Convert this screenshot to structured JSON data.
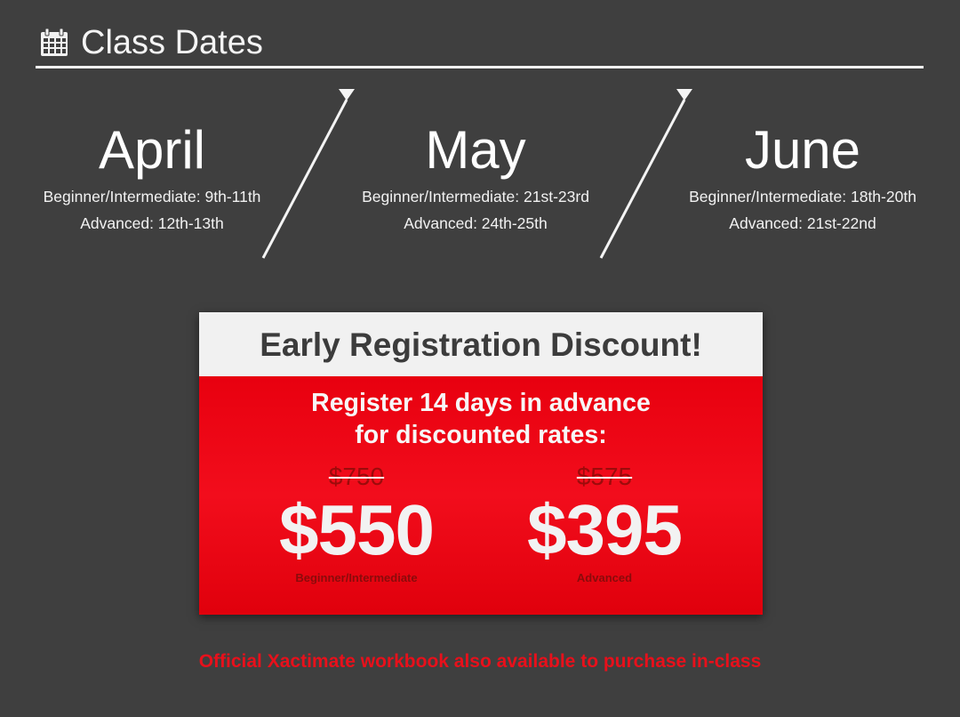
{
  "header": {
    "icon": "calendar-icon",
    "title": "Class Dates"
  },
  "months": [
    {
      "name": "April",
      "beginner": "Beginner/Intermediate: 9th-11th",
      "advanced": "Advanced: 12th-13th"
    },
    {
      "name": "May",
      "beginner": "Beginner/Intermediate: 21st-23rd",
      "advanced": "Advanced: 24th-25th"
    },
    {
      "name": "June",
      "beginner": "Beginner/Intermediate: 18th-20th",
      "advanced": "Advanced: 21st-22nd"
    }
  ],
  "discount": {
    "title": "Early Registration Discount!",
    "subtitle_line1": "Register 14 days in advance",
    "subtitle_line2": "for discounted rates:",
    "prices": [
      {
        "old_price": "$750",
        "new_price": "$550",
        "label": "Beginner/Intermediate"
      },
      {
        "old_price": "$575",
        "new_price": "$395",
        "label": "Advanced"
      }
    ]
  },
  "footnote": "Official Xactimate workbook also available to purchase in-class",
  "colors": {
    "background": "#3f3f3f",
    "accent_red": "#e8000f",
    "card_header": "#f1f1f1"
  }
}
